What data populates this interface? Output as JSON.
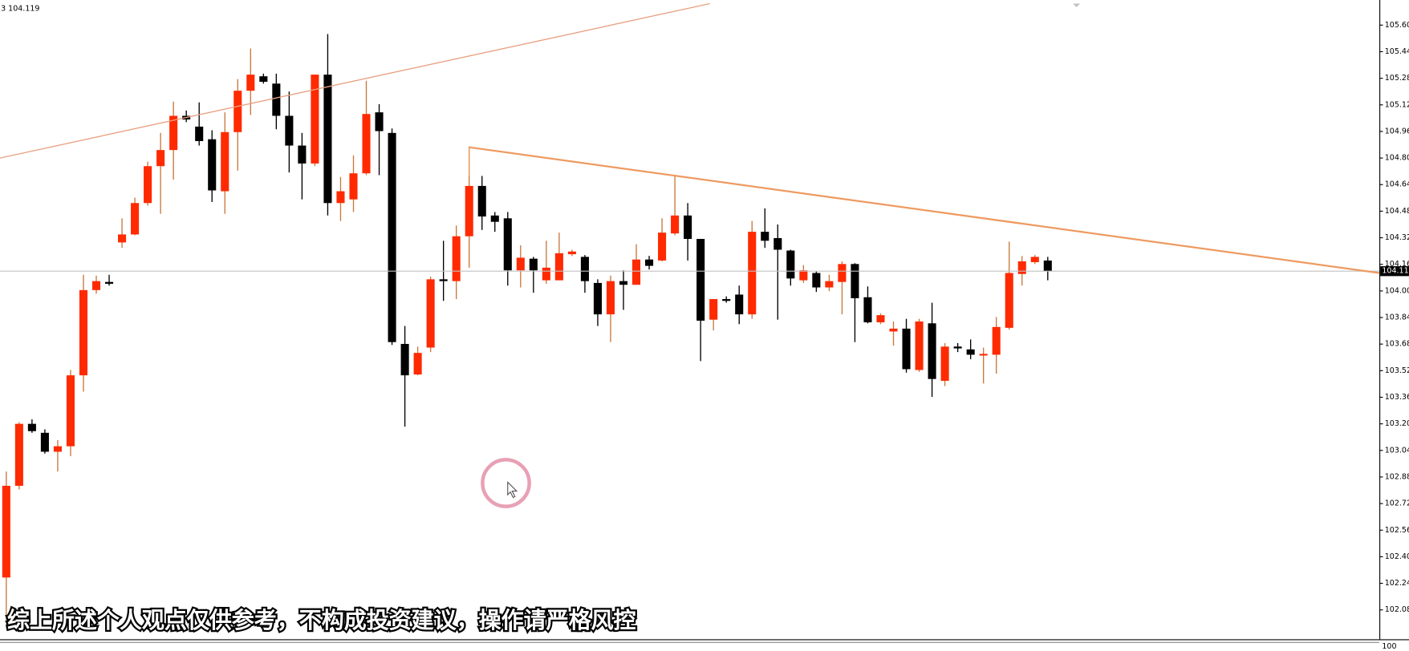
{
  "chart_data": {
    "type": "candlestick",
    "header": "3 104.119",
    "caption": "综上所述个人观点仅供参考，不构成投资建议，操作请严格风控",
    "indicator_label": "100",
    "up_color": "#ff2a00",
    "down_color": "#000000",
    "up_wick_color": "#c8783c",
    "down_wick_color": "#000000",
    "current_price": 104.119,
    "ylim": [
      101.903,
      105.751
    ],
    "yticks": [
      {
        "value": 105.6,
        "label": "105.600"
      },
      {
        "value": 105.44,
        "label": "105.440"
      },
      {
        "value": 105.28,
        "label": "105.280"
      },
      {
        "value": 105.12,
        "label": "105.120"
      },
      {
        "value": 104.96,
        "label": "104.960"
      },
      {
        "value": 104.8,
        "label": "104.800"
      },
      {
        "value": 104.64,
        "label": "104.640"
      },
      {
        "value": 104.48,
        "label": "104.480"
      },
      {
        "value": 104.32,
        "label": "104.320"
      },
      {
        "value": 104.16,
        "label": "104.160"
      },
      {
        "value": 104.0,
        "label": "104.000"
      },
      {
        "value": 103.84,
        "label": "103.840"
      },
      {
        "value": 103.68,
        "label": "103.680"
      },
      {
        "value": 103.52,
        "label": "103.520"
      },
      {
        "value": 103.36,
        "label": "103.360"
      },
      {
        "value": 103.2,
        "label": "103.200"
      },
      {
        "value": 103.04,
        "label": "103.040"
      },
      {
        "value": 102.88,
        "label": "102.880"
      },
      {
        "value": 102.72,
        "label": "102.720"
      },
      {
        "value": 102.56,
        "label": "102.560"
      },
      {
        "value": 102.4,
        "label": "102.400"
      },
      {
        "value": 102.24,
        "label": "102.240"
      },
      {
        "value": 102.08,
        "label": "102.080"
      }
    ],
    "open": [
      102.275,
      102.827,
      103.2,
      103.146,
      103.032,
      103.065,
      103.492,
      104.005,
      104.054,
      104.292,
      104.34,
      104.529,
      104.751,
      104.848,
      105.054,
      104.989,
      104.913,
      104.6,
      104.956,
      105.205,
      105.292,
      105.248,
      105.054,
      104.875,
      104.767,
      105.302,
      104.529,
      104.551,
      104.708,
      105.075,
      104.951,
      103.681,
      103.497,
      103.659,
      104.07,
      104.059,
      104.329,
      104.632,
      104.454,
      104.437,
      104.124,
      104.194,
      104.064,
      104.064,
      104.221,
      104.205,
      104.048,
      103.859,
      104.059,
      104.037,
      104.189,
      104.183,
      104.346,
      104.454,
      104.313,
      103.827,
      103.951,
      103.978,
      103.859,
      104.356,
      104.318,
      104.243,
      104.064,
      104.108,
      104.021,
      104.054,
      104.162,
      103.962,
      103.811,
      103.756,
      103.773,
      103.524,
      103.805,
      103.459,
      103.665,
      103.648,
      103.611,
      103.616,
      103.778,
      104.102,
      104.173,
      104.183
    ],
    "high": [
      102.913,
      103.21,
      103.227,
      103.167,
      103.102,
      103.524,
      104.097,
      104.092,
      104.097,
      104.437,
      104.562,
      104.778,
      104.951,
      105.14,
      105.086,
      105.135,
      104.967,
      105.075,
      105.275,
      105.459,
      105.308,
      105.308,
      105.2,
      104.951,
      105.302,
      105.546,
      104.686,
      104.816,
      105.265,
      105.124,
      104.978,
      103.789,
      103.665,
      104.086,
      104.302,
      104.394,
      104.87,
      104.692,
      104.475,
      104.475,
      104.275,
      104.205,
      104.302,
      104.351,
      104.248,
      104.216,
      104.07,
      104.092,
      104.124,
      104.281,
      104.211,
      104.437,
      104.697,
      104.529,
      104.313,
      103.951,
      103.967,
      104.032,
      104.421,
      104.497,
      104.4,
      104.248,
      104.156,
      104.118,
      104.097,
      104.178,
      104.167,
      104.027,
      103.865,
      103.816,
      103.832,
      103.832,
      103.929,
      103.686,
      103.686,
      103.708,
      103.659,
      103.843,
      104.297,
      104.21,
      104.216,
      104.205
    ],
    "low": [
      102.021,
      102.805,
      103.146,
      103.021,
      102.913,
      103.005,
      103.394,
      103.983,
      104.032,
      104.259,
      104.335,
      104.513,
      104.464,
      104.67,
      105.016,
      104.875,
      104.535,
      104.464,
      104.724,
      105.059,
      105.248,
      104.973,
      104.713,
      104.551,
      104.751,
      104.454,
      104.421,
      104.475,
      104.697,
      104.697,
      103.675,
      103.183,
      103.492,
      103.632,
      103.94,
      103.951,
      104.14,
      104.367,
      104.356,
      104.032,
      104.021,
      103.989,
      104.043,
      104.064,
      104.21,
      103.989,
      103.789,
      103.692,
      103.886,
      104.037,
      104.129,
      104.178,
      104.335,
      104.183,
      103.578,
      103.762,
      103.929,
      103.8,
      103.832,
      104.259,
      103.827,
      104.032,
      104.048,
      103.994,
      103.999,
      103.859,
      103.692,
      103.805,
      103.8,
      103.67,
      103.508,
      103.513,
      103.362,
      103.427,
      103.632,
      103.589,
      103.443,
      103.502,
      103.767,
      104.032,
      104.162,
      104.064
    ],
    "close": [
      102.827,
      103.2,
      103.156,
      103.032,
      103.065,
      103.492,
      104.005,
      104.059,
      104.043,
      104.34,
      104.529,
      104.751,
      104.848,
      105.054,
      105.032,
      104.902,
      104.605,
      104.956,
      105.205,
      105.302,
      105.259,
      105.054,
      104.875,
      104.767,
      105.302,
      104.529,
      104.6,
      104.708,
      105.065,
      104.962,
      103.692,
      103.492,
      103.627,
      104.07,
      104.059,
      104.329,
      104.632,
      104.448,
      104.416,
      104.124,
      104.2,
      104.124,
      104.14,
      104.227,
      104.237,
      104.059,
      103.859,
      104.059,
      104.037,
      104.189,
      104.151,
      104.351,
      104.454,
      104.313,
      103.821,
      103.951,
      103.94,
      103.859,
      104.356,
      104.302,
      104.248,
      104.075,
      104.124,
      104.021,
      104.059,
      104.162,
      103.956,
      103.811,
      103.854,
      103.773,
      103.529,
      103.816,
      103.47,
      103.665,
      103.654,
      103.616,
      103.621,
      103.783,
      104.108,
      104.178,
      104.205,
      104.118
    ]
  }
}
